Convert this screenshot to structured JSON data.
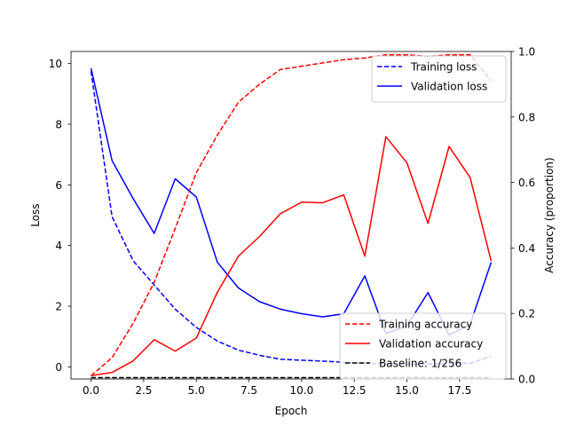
{
  "chart_data": {
    "type": "line",
    "x": [
      0,
      1,
      2,
      3,
      4,
      5,
      6,
      7,
      8,
      9,
      10,
      11,
      12,
      13,
      14,
      15,
      16,
      17,
      18,
      19
    ],
    "xlabel": "Epoch",
    "xlim": [
      -0.95,
      19.95
    ],
    "xticks": [
      0.0,
      2.5,
      5.0,
      7.5,
      10.0,
      12.5,
      15.0,
      17.5
    ],
    "xtick_labels": [
      "0.0",
      "2.5",
      "5.0",
      "7.5",
      "10.0",
      "12.5",
      "15.0",
      "17.5"
    ],
    "left_axis": {
      "ylabel": "Loss",
      "ylim": [
        -0.4,
        10.4
      ],
      "yticks": [
        0,
        2,
        4,
        6,
        8,
        10
      ],
      "ytick_labels": [
        "0",
        "2",
        "4",
        "6",
        "8",
        "10"
      ]
    },
    "right_axis": {
      "ylabel": "Accuracy (proportion)",
      "ylim": [
        0.0,
        1.0
      ],
      "yticks": [
        0.0,
        0.2,
        0.4,
        0.6,
        0.8,
        1.0
      ],
      "ytick_labels": [
        "0.0",
        "0.2",
        "0.4",
        "0.6",
        "0.8",
        "1.0"
      ]
    },
    "series": [
      {
        "name": "Training loss",
        "axis": "left",
        "color": "#0000ff",
        "style": "dashed",
        "values": [
          9.75,
          4.95,
          3.5,
          2.7,
          1.9,
          1.3,
          0.85,
          0.55,
          0.38,
          0.25,
          0.22,
          0.19,
          0.15,
          0.12,
          0.1,
          0.09,
          0.09,
          0.11,
          0.12,
          0.35
        ]
      },
      {
        "name": "Validation loss",
        "axis": "left",
        "color": "#0000ff",
        "style": "solid",
        "values": [
          9.85,
          6.8,
          5.55,
          4.4,
          6.2,
          5.6,
          3.45,
          2.6,
          2.15,
          1.9,
          1.75,
          1.65,
          1.75,
          3.0,
          1.1,
          1.35,
          2.45,
          1.05,
          1.4,
          3.45
        ]
      },
      {
        "name": "Training accuracy",
        "axis": "right",
        "color": "#ff0000",
        "style": "dashed",
        "values": [
          0.01,
          0.065,
          0.17,
          0.295,
          0.46,
          0.63,
          0.745,
          0.845,
          0.9,
          0.945,
          0.955,
          0.965,
          0.975,
          0.98,
          0.99,
          0.99,
          0.985,
          0.99,
          0.99,
          0.91
        ]
      },
      {
        "name": "Validation accuracy",
        "axis": "right",
        "color": "#ff0000",
        "style": "solid",
        "values": [
          0.01,
          0.02,
          0.055,
          0.12,
          0.085,
          0.125,
          0.265,
          0.375,
          0.435,
          0.505,
          0.54,
          0.538,
          0.562,
          0.375,
          0.74,
          0.66,
          0.475,
          0.71,
          0.615,
          0.36
        ]
      },
      {
        "name": "Baseline: 1/256",
        "axis": "right",
        "color": "#000000",
        "style": "dashed",
        "values": [
          0.0039,
          0.0039,
          0.0039,
          0.0039,
          0.0039,
          0.0039,
          0.0039,
          0.0039,
          0.0039,
          0.0039,
          0.0039,
          0.0039,
          0.0039,
          0.0039,
          0.0039,
          0.0039,
          0.0039,
          0.0039,
          0.0039,
          0.0039
        ]
      }
    ],
    "legends": [
      {
        "placement": "top-right",
        "entries": [
          "Training loss",
          "Validation loss"
        ]
      },
      {
        "placement": "bottom-right",
        "entries": [
          "Training accuracy",
          "Validation accuracy",
          "Baseline: 1/256"
        ]
      }
    ],
    "grid": false
  }
}
